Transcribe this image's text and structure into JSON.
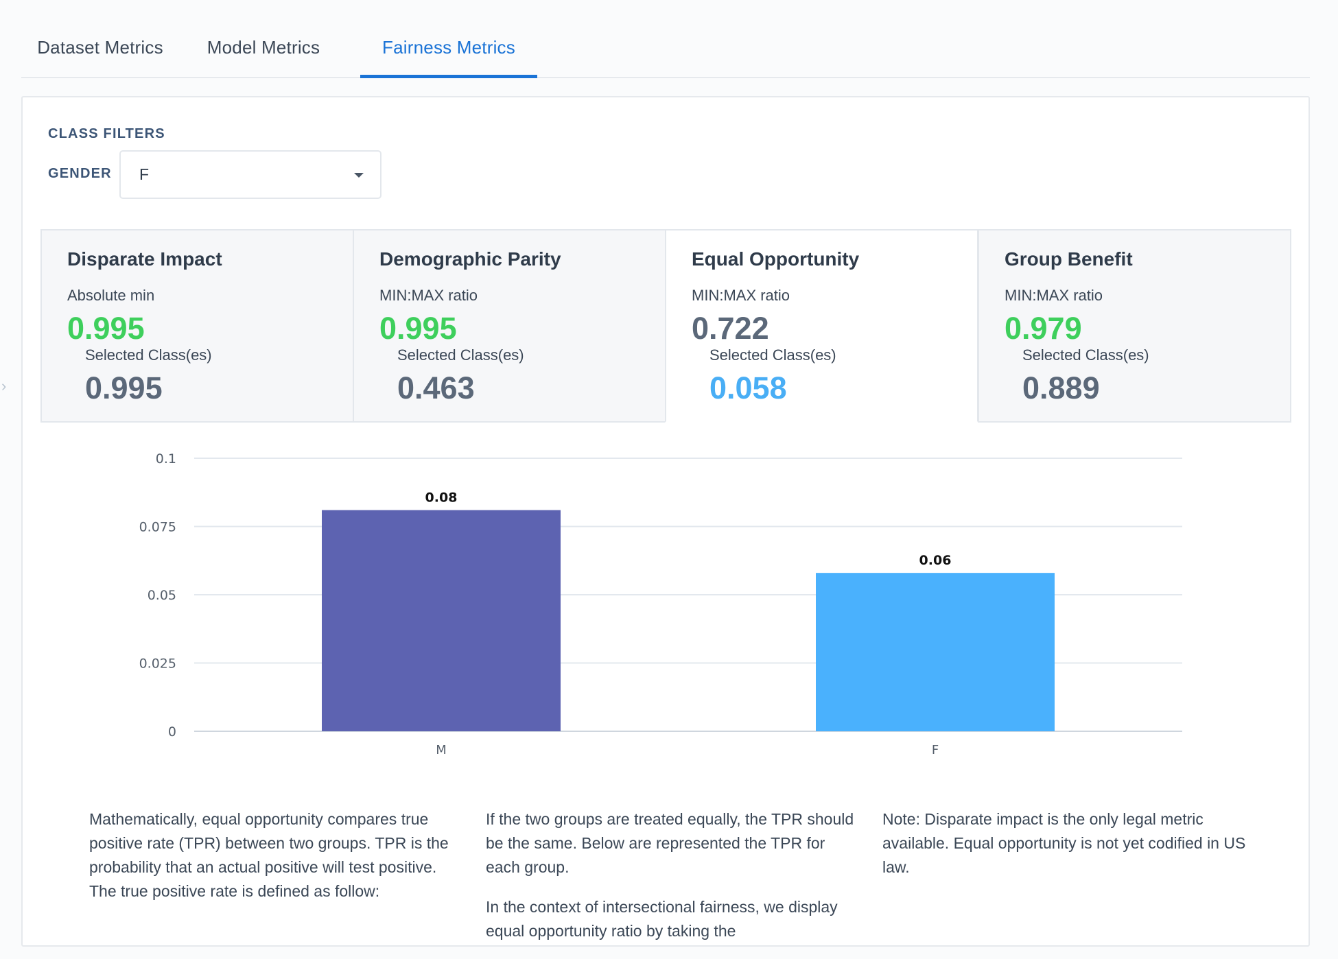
{
  "tabs": [
    {
      "label": "Dataset Metrics",
      "active": false
    },
    {
      "label": "Model Metrics",
      "active": false
    },
    {
      "label": "Fairness Metrics",
      "active": true
    }
  ],
  "filters": {
    "heading": "CLASS FILTERS",
    "gender_label": "GENDER",
    "gender_value": "F"
  },
  "metrics": [
    {
      "title": "Disparate Impact",
      "subtitle": "Absolute min",
      "value": "0.995",
      "value_color": "#3ecf5c",
      "selected_label": "Selected Class(es)",
      "selected_value": "0.995",
      "selected_color": "#5b6879",
      "active": false
    },
    {
      "title": "Demographic Parity",
      "subtitle": "MIN:MAX ratio",
      "value": "0.995",
      "value_color": "#3ecf5c",
      "selected_label": "Selected Class(es)",
      "selected_value": "0.463",
      "selected_color": "#5b6879",
      "active": false
    },
    {
      "title": "Equal Opportunity",
      "subtitle": "MIN:MAX ratio",
      "value": "0.722",
      "value_color": "#5b6879",
      "selected_label": "Selected Class(es)",
      "selected_value": "0.058",
      "selected_color": "#49aef5",
      "active": true
    },
    {
      "title": "Group Benefit",
      "subtitle": "MIN:MAX ratio",
      "value": "0.979",
      "value_color": "#3ecf5c",
      "selected_label": "Selected Class(es)",
      "selected_value": "0.889",
      "selected_color": "#5b6879",
      "active": false
    }
  ],
  "chart_data": {
    "type": "bar",
    "categories": [
      "M",
      "F"
    ],
    "values": [
      0.081,
      0.058
    ],
    "data_labels": [
      "0.08",
      "0.06"
    ],
    "colors": [
      "#5d63b1",
      "#4ab1fd"
    ],
    "ylim": [
      0,
      0.1
    ],
    "yticks": [
      0,
      0.025,
      0.05,
      0.075,
      0.1
    ],
    "ytick_labels": [
      "0",
      "0.025",
      "0.05",
      "0.075",
      "0.1"
    ],
    "grid": true,
    "title": "",
    "xlabel": "",
    "ylabel": ""
  },
  "description": {
    "col1": "Mathematically, equal opportunity compares true positive rate (TPR) between two groups. TPR is the probability that an actual positive will test positive. The true positive rate is defined as follow:",
    "col2_p1": "If the two groups are treated equally, the TPR should be the same. Below are represented the TPR for each group.",
    "col2_p2": "In the context of intersectional fairness, we display equal opportunity ratio by taking the",
    "col3": "Note: Disparate impact is the only legal metric available. Equal opportunity is not yet codified in US law."
  }
}
